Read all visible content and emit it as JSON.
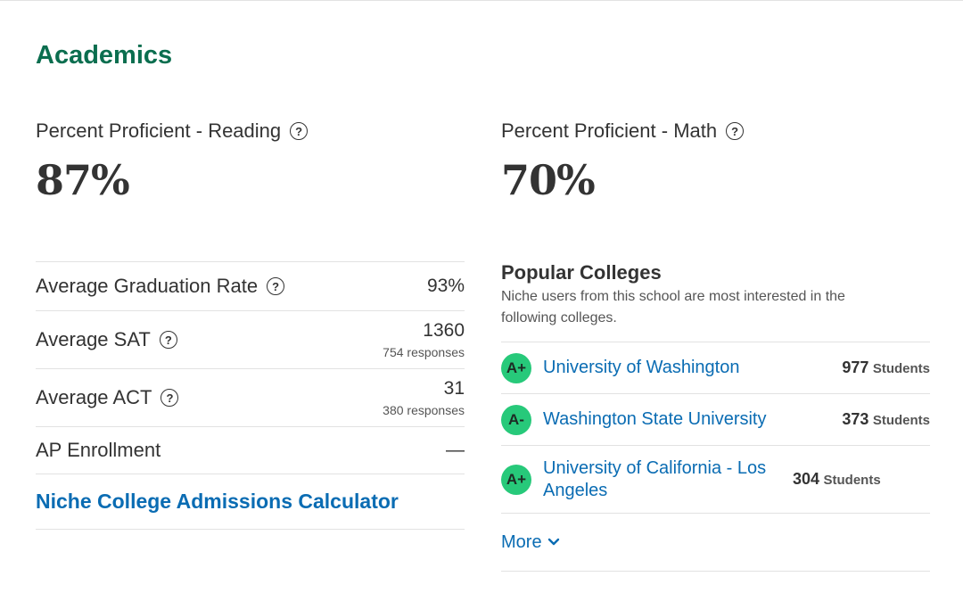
{
  "section": {
    "title": "Academics"
  },
  "proficiency": {
    "reading": {
      "label": "Percent Proficient - Reading",
      "value": "87%"
    },
    "math": {
      "label": "Percent Proficient - Math",
      "value": "70%"
    }
  },
  "stats": {
    "graduation": {
      "label": "Average Graduation Rate",
      "value": "93%"
    },
    "sat": {
      "label": "Average SAT",
      "value": "1360",
      "sub": "754 responses"
    },
    "act": {
      "label": "Average ACT",
      "value": "31",
      "sub": "380 responses"
    },
    "ap": {
      "label": "AP Enrollment",
      "value": "—"
    },
    "calculator_link": "Niche College Admissions Calculator"
  },
  "colleges": {
    "title": "Popular Colleges",
    "description": "Niche users from this school are most interested in the following colleges.",
    "items": [
      {
        "grade": "A+",
        "name": "University of Washington",
        "count": "977",
        "unit": "Students"
      },
      {
        "grade": "A-",
        "name": "Washington State University",
        "count": "373",
        "unit": "Students"
      },
      {
        "grade": "A+",
        "name": "University of California - Los Angeles",
        "count": "304",
        "unit": "Students"
      }
    ],
    "more_label": "More"
  },
  "icons": {
    "help": "help-circle-icon",
    "more": "chevron-down-icon"
  },
  "colors": {
    "heading": "#0b6e4f",
    "link": "#0a6cb3",
    "grade_badge": "#27c97a"
  }
}
